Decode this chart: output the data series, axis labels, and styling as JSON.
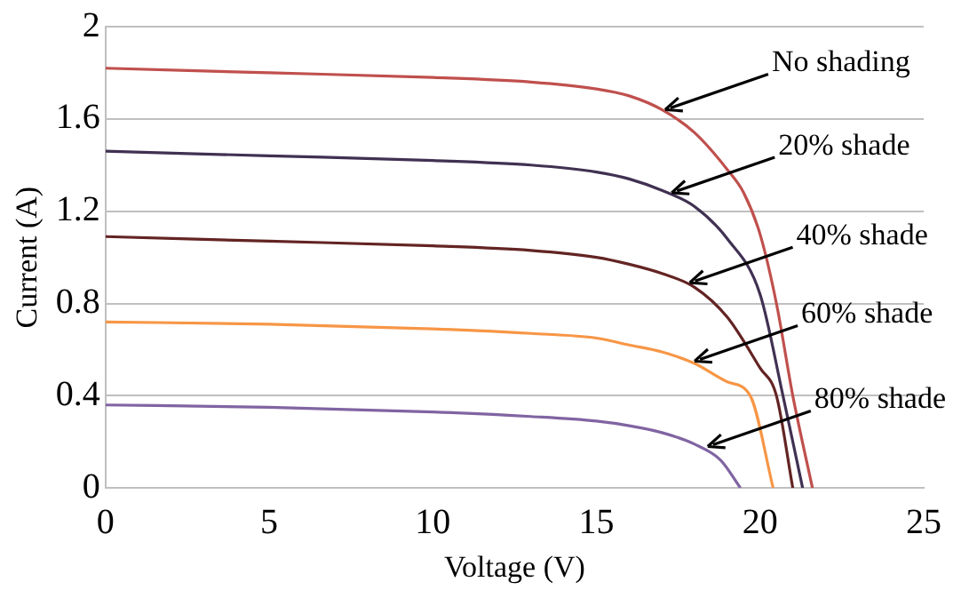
{
  "chart_data": {
    "type": "line",
    "xlabel": "Voltage (V)",
    "ylabel": "Current (A)",
    "xlim": [
      0,
      25
    ],
    "xticks": [
      0,
      5,
      10,
      15,
      20,
      25
    ],
    "ylim": [
      0,
      2
    ],
    "yticks": [
      0,
      0.4,
      0.8,
      1.2,
      1.6,
      2
    ],
    "grid": "y",
    "legend": false,
    "marker": "none",
    "line_style": "solid",
    "series": [
      {
        "color": "#c0504d",
        "x": [
          0,
          5,
          10,
          13,
          15,
          16,
          17,
          18,
          19,
          19.5,
          20,
          20.5,
          21,
          21.6
        ],
        "values": [
          1.82,
          1.8,
          1.78,
          1.76,
          1.73,
          1.7,
          1.64,
          1.54,
          1.38,
          1.28,
          1.1,
          0.8,
          0.4,
          0
        ]
      },
      {
        "color": "#403152",
        "x": [
          0,
          5,
          10,
          13,
          15,
          16,
          17,
          18,
          19,
          20,
          20.7,
          21.3
        ],
        "values": [
          1.46,
          1.44,
          1.42,
          1.4,
          1.37,
          1.34,
          1.29,
          1.22,
          1.08,
          0.84,
          0.4,
          0
        ]
      },
      {
        "color": "#632423",
        "x": [
          0,
          5,
          10,
          13,
          15,
          16,
          17,
          18,
          19,
          20,
          20.5,
          21
        ],
        "values": [
          1.09,
          1.07,
          1.05,
          1.03,
          1,
          0.97,
          0.93,
          0.87,
          0.74,
          0.52,
          0.4,
          0
        ]
      },
      {
        "color": "#f79646",
        "x": [
          0,
          5,
          10,
          13,
          15,
          16,
          17,
          18,
          19,
          19.7,
          20.4
        ],
        "values": [
          0.72,
          0.71,
          0.69,
          0.67,
          0.65,
          0.62,
          0.59,
          0.54,
          0.46,
          0.4,
          0
        ]
      },
      {
        "color": "#8064a2",
        "x": [
          0,
          5,
          10,
          13,
          15,
          16,
          17,
          18,
          18.8,
          19.4
        ],
        "values": [
          0.36,
          0.35,
          0.33,
          0.31,
          0.29,
          0.27,
          0.24,
          0.19,
          0.12,
          0
        ]
      }
    ],
    "annotations": [
      {
        "text": "No shading",
        "x": 17.1,
        "y": 1.64
      },
      {
        "text": "20% shade",
        "x": 17.3,
        "y": 1.28
      },
      {
        "text": "40% shade",
        "x": 17.85,
        "y": 0.89
      },
      {
        "text": "60% shade",
        "x": 18,
        "y": 0.55
      },
      {
        "text": "80% shade",
        "x": 18.4,
        "y": 0.18
      }
    ]
  }
}
